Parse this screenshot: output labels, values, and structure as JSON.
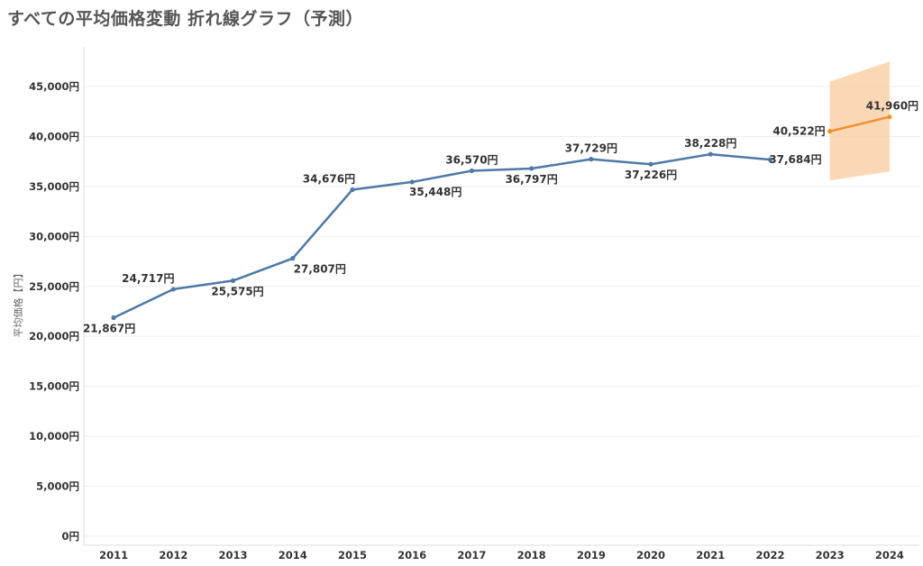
{
  "title": "すべての平均価格変動 折れ線グラフ（予測）",
  "chart_data": {
    "type": "line",
    "title": "すべての平均価格変動 折れ線グラフ（予測）",
    "xlabel": "",
    "ylabel": "平均価格【円】",
    "ylim": [
      0,
      48000
    ],
    "yticks": [
      0,
      5000,
      10000,
      15000,
      20000,
      25000,
      30000,
      35000,
      40000,
      45000
    ],
    "ytick_labels": [
      "0円",
      "5,000円",
      "10,000円",
      "15,000円",
      "20,000円",
      "25,000円",
      "30,000円",
      "35,000円",
      "40,000円",
      "45,000円"
    ],
    "categories": [
      "2011",
      "2012",
      "2013",
      "2014",
      "2015",
      "2016",
      "2017",
      "2018",
      "2019",
      "2020",
      "2021",
      "2022",
      "2023",
      "2024"
    ],
    "grid": true,
    "series": [
      {
        "name": "",
        "color": "#4e79a7",
        "x": [
          "2011",
          "2012",
          "2013",
          "2014",
          "2015",
          "2016",
          "2017",
          "2018",
          "2019",
          "2020",
          "2021",
          "2022"
        ],
        "values": [
          21867,
          24717,
          25575,
          27807,
          34676,
          35448,
          36570,
          36797,
          37729,
          37226,
          38228,
          37684
        ],
        "labels": [
          "21,867円",
          "24,717円",
          "25,575円",
          "27,807円",
          "34,676円",
          "35,448円",
          "36,570円",
          "36,797円",
          "37,729円",
          "37,226円",
          "38,228円",
          "37,684円"
        ]
      },
      {
        "name": "",
        "color": "#f28e2b",
        "x": [
          "2023",
          "2024"
        ],
        "values": [
          40522,
          41960
        ],
        "labels": [
          "40,522円",
          "41,960円"
        ]
      }
    ],
    "forecast_band": {
      "color": "#f9cb9c",
      "x": [
        "2023",
        "2024"
      ],
      "lower": [
        35600,
        36500
      ],
      "upper": [
        45500,
        47500
      ]
    }
  }
}
